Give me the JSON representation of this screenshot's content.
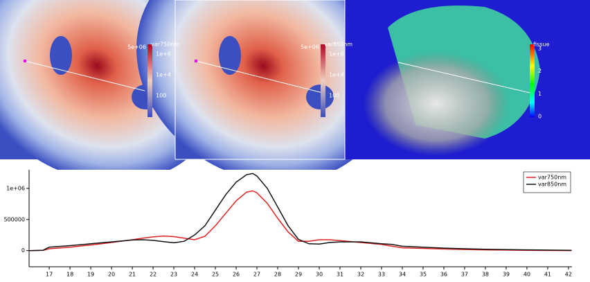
{
  "panels": [
    {
      "colorbar_title": "var750nm",
      "colorbar_labels": [
        "5e+06",
        "1e+6",
        "1e+4",
        "100"
      ]
    },
    {
      "colorbar_title": "var850nm",
      "colorbar_labels": [
        "5e+06",
        "1e+6",
        "1e+4",
        "100"
      ]
    },
    {
      "colorbar_title": "fissue",
      "colorbar_labels": [
        "3",
        "2",
        "1",
        "0"
      ]
    }
  ],
  "chart_data": {
    "type": "line",
    "x": [
      16.05,
      16.7,
      17,
      18,
      19,
      20,
      21,
      21.5,
      22,
      22.5,
      23,
      23.5,
      24,
      24.5,
      25,
      25.5,
      26,
      26.5,
      26.8,
      27,
      27.5,
      28,
      28.5,
      29,
      29.5,
      30,
      30.5,
      31,
      32,
      33,
      33.5,
      34,
      35,
      36,
      37,
      38,
      40,
      42.15
    ],
    "series": [
      {
        "name": "var750nm",
        "color": "#e02020",
        "values": [
          0,
          5000,
          30000,
          55000,
          90000,
          130000,
          175000,
          200000,
          220000,
          235000,
          225000,
          200000,
          175000,
          230000,
          400000,
          600000,
          800000,
          940000,
          960000,
          930000,
          760000,
          520000,
          300000,
          150000,
          150000,
          175000,
          175000,
          160000,
          130000,
          100000,
          70000,
          45000,
          35000,
          25000,
          18000,
          12000,
          5000,
          0
        ]
      },
      {
        "name": "var850nm",
        "color": "#111111",
        "values": [
          0,
          5000,
          55000,
          80000,
          110000,
          140000,
          170000,
          175000,
          165000,
          145000,
          125000,
          150000,
          250000,
          400000,
          650000,
          900000,
          1100000,
          1220000,
          1240000,
          1200000,
          1000000,
          700000,
          400000,
          180000,
          110000,
          105000,
          130000,
          140000,
          140000,
          110000,
          100000,
          70000,
          55000,
          40000,
          30000,
          22000,
          12000,
          5000
        ]
      }
    ],
    "xlim": [
      16.03,
      42.17
    ],
    "xticks": [
      17,
      18,
      19,
      20,
      21,
      22,
      23,
      24,
      25,
      26,
      27,
      28,
      29,
      30,
      31,
      32,
      33,
      34,
      35,
      36,
      37,
      38,
      39,
      40,
      41,
      42
    ],
    "ylim": [
      -260000,
      1300000
    ],
    "yticks": [
      0,
      500000,
      {
        "value": 1000000,
        "label": "1e+06"
      }
    ],
    "legend": "top-right"
  }
}
